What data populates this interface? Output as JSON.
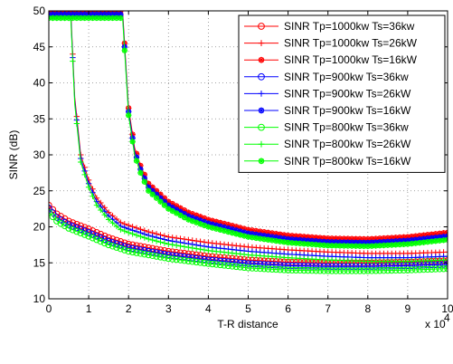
{
  "chart_data": {
    "type": "line",
    "title": "",
    "xlabel": "T-R distance",
    "ylabel": "SINR (dB)",
    "x_multiplier_label": "x 10",
    "x_multiplier_exponent": "4",
    "xlim": [
      0,
      100000
    ],
    "ylim": [
      10,
      50
    ],
    "xticks": [
      0,
      10000,
      20000,
      30000,
      40000,
      50000,
      60000,
      70000,
      80000,
      90000,
      100000
    ],
    "xtick_labels": [
      "0",
      "1",
      "2",
      "3",
      "4",
      "5",
      "6",
      "7",
      "8",
      "9",
      "10"
    ],
    "yticks": [
      10,
      15,
      20,
      25,
      30,
      35,
      40,
      45,
      50
    ],
    "ytick_labels": [
      "10",
      "15",
      "20",
      "25",
      "30",
      "35",
      "40",
      "45",
      "50"
    ],
    "grid": true,
    "legend_position": "top-right",
    "colors": {
      "red": "#ff0000",
      "blue": "#0000ff",
      "green": "#00ff00"
    },
    "series": [
      {
        "name": "SINR Tp=1000kw Ts=36kw",
        "color": "#ff0000",
        "marker": "circle",
        "x": [
          0,
          2000,
          5000,
          10000,
          15000,
          20000,
          30000,
          40000,
          50000,
          60000,
          70000,
          80000,
          90000,
          100000
        ],
        "y": [
          23.0,
          21.8,
          20.8,
          19.7,
          18.5,
          17.6,
          16.6,
          15.9,
          15.4,
          15.1,
          15.0,
          15.0,
          15.1,
          15.3
        ]
      },
      {
        "name": "SINR Tp=1000kw Ts=26kW",
        "color": "#ff0000",
        "marker": "plus",
        "x": [
          0,
          5500,
          6500,
          8000,
          10000,
          12000,
          15000,
          18000,
          20000,
          25000,
          30000,
          40000,
          50000,
          60000,
          70000,
          80000,
          90000,
          100000
        ],
        "y": [
          50,
          50,
          38.0,
          30.0,
          26.5,
          24.0,
          22.0,
          20.6,
          20.2,
          19.3,
          18.6,
          17.8,
          17.2,
          16.8,
          16.5,
          16.3,
          16.3,
          16.5
        ]
      },
      {
        "name": "SINR Tp=1000kw Ts=16kW",
        "color": "#ff0000",
        "marker": "star",
        "x": [
          0,
          18500,
          20000,
          21500,
          23000,
          25000,
          30000,
          35000,
          40000,
          50000,
          60000,
          70000,
          80000,
          90000,
          100000
        ],
        "y": [
          50,
          50,
          36.5,
          31.0,
          28.5,
          26.0,
          23.5,
          22.0,
          21.0,
          19.6,
          18.8,
          18.4,
          18.3,
          18.6,
          19.2
        ]
      },
      {
        "name": "SINR Tp=900kw Ts=36kw",
        "color": "#0000ff",
        "marker": "circle",
        "x": [
          0,
          2000,
          5000,
          10000,
          15000,
          20000,
          30000,
          40000,
          50000,
          60000,
          70000,
          80000,
          90000,
          100000
        ],
        "y": [
          22.6,
          21.3,
          20.3,
          19.2,
          18.0,
          17.1,
          16.1,
          15.4,
          14.9,
          14.6,
          14.5,
          14.5,
          14.6,
          14.8
        ]
      },
      {
        "name": "SINR Tp=900kw Ts=26kW",
        "color": "#0000ff",
        "marker": "plus",
        "x": [
          0,
          5500,
          6500,
          8000,
          10000,
          12000,
          15000,
          18000,
          20000,
          25000,
          30000,
          40000,
          50000,
          60000,
          70000,
          80000,
          90000,
          100000
        ],
        "y": [
          49.5,
          49.5,
          37.5,
          29.5,
          26.0,
          23.5,
          21.5,
          20.1,
          19.7,
          18.8,
          18.1,
          17.2,
          16.6,
          16.2,
          15.9,
          15.7,
          15.7,
          15.9
        ]
      },
      {
        "name": "SINR Tp=900kw Ts=16kW",
        "color": "#0000ff",
        "marker": "star",
        "x": [
          0,
          18500,
          20000,
          21500,
          23000,
          25000,
          30000,
          35000,
          40000,
          50000,
          60000,
          70000,
          80000,
          90000,
          100000
        ],
        "y": [
          49.5,
          49.5,
          36.0,
          30.5,
          28.0,
          25.5,
          23.0,
          21.5,
          20.5,
          19.1,
          18.3,
          17.9,
          17.8,
          18.1,
          18.7
        ]
      },
      {
        "name": "SINR Tp=800kw Ts=36kw",
        "color": "#00ff00",
        "marker": "circle",
        "x": [
          0,
          2000,
          5000,
          10000,
          15000,
          20000,
          30000,
          40000,
          50000,
          60000,
          70000,
          80000,
          90000,
          100000
        ],
        "y": [
          22.0,
          20.8,
          19.8,
          18.7,
          17.5,
          16.6,
          15.6,
          14.9,
          14.3,
          14.0,
          13.9,
          13.9,
          14.0,
          14.2
        ]
      },
      {
        "name": "SINR Tp=800kw Ts=26kW",
        "color": "#00ff00",
        "marker": "plus",
        "x": [
          0,
          5500,
          6500,
          8000,
          10000,
          12000,
          15000,
          18000,
          20000,
          25000,
          30000,
          40000,
          50000,
          60000,
          70000,
          80000,
          90000,
          100000
        ],
        "y": [
          49.0,
          49.0,
          37.0,
          29.0,
          25.5,
          23.0,
          21.0,
          19.6,
          19.2,
          18.3,
          17.6,
          16.7,
          16.1,
          15.7,
          15.4,
          15.2,
          15.2,
          15.4
        ]
      },
      {
        "name": "SINR Tp=800kw Ts=16kW",
        "color": "#00ff00",
        "marker": "star",
        "x": [
          0,
          18500,
          20000,
          21500,
          23000,
          25000,
          30000,
          35000,
          40000,
          50000,
          60000,
          70000,
          80000,
          90000,
          100000
        ],
        "y": [
          49.0,
          49.0,
          35.5,
          30.0,
          27.5,
          25.0,
          22.5,
          21.0,
          20.0,
          18.6,
          17.8,
          17.4,
          17.3,
          17.6,
          18.2
        ]
      }
    ]
  }
}
